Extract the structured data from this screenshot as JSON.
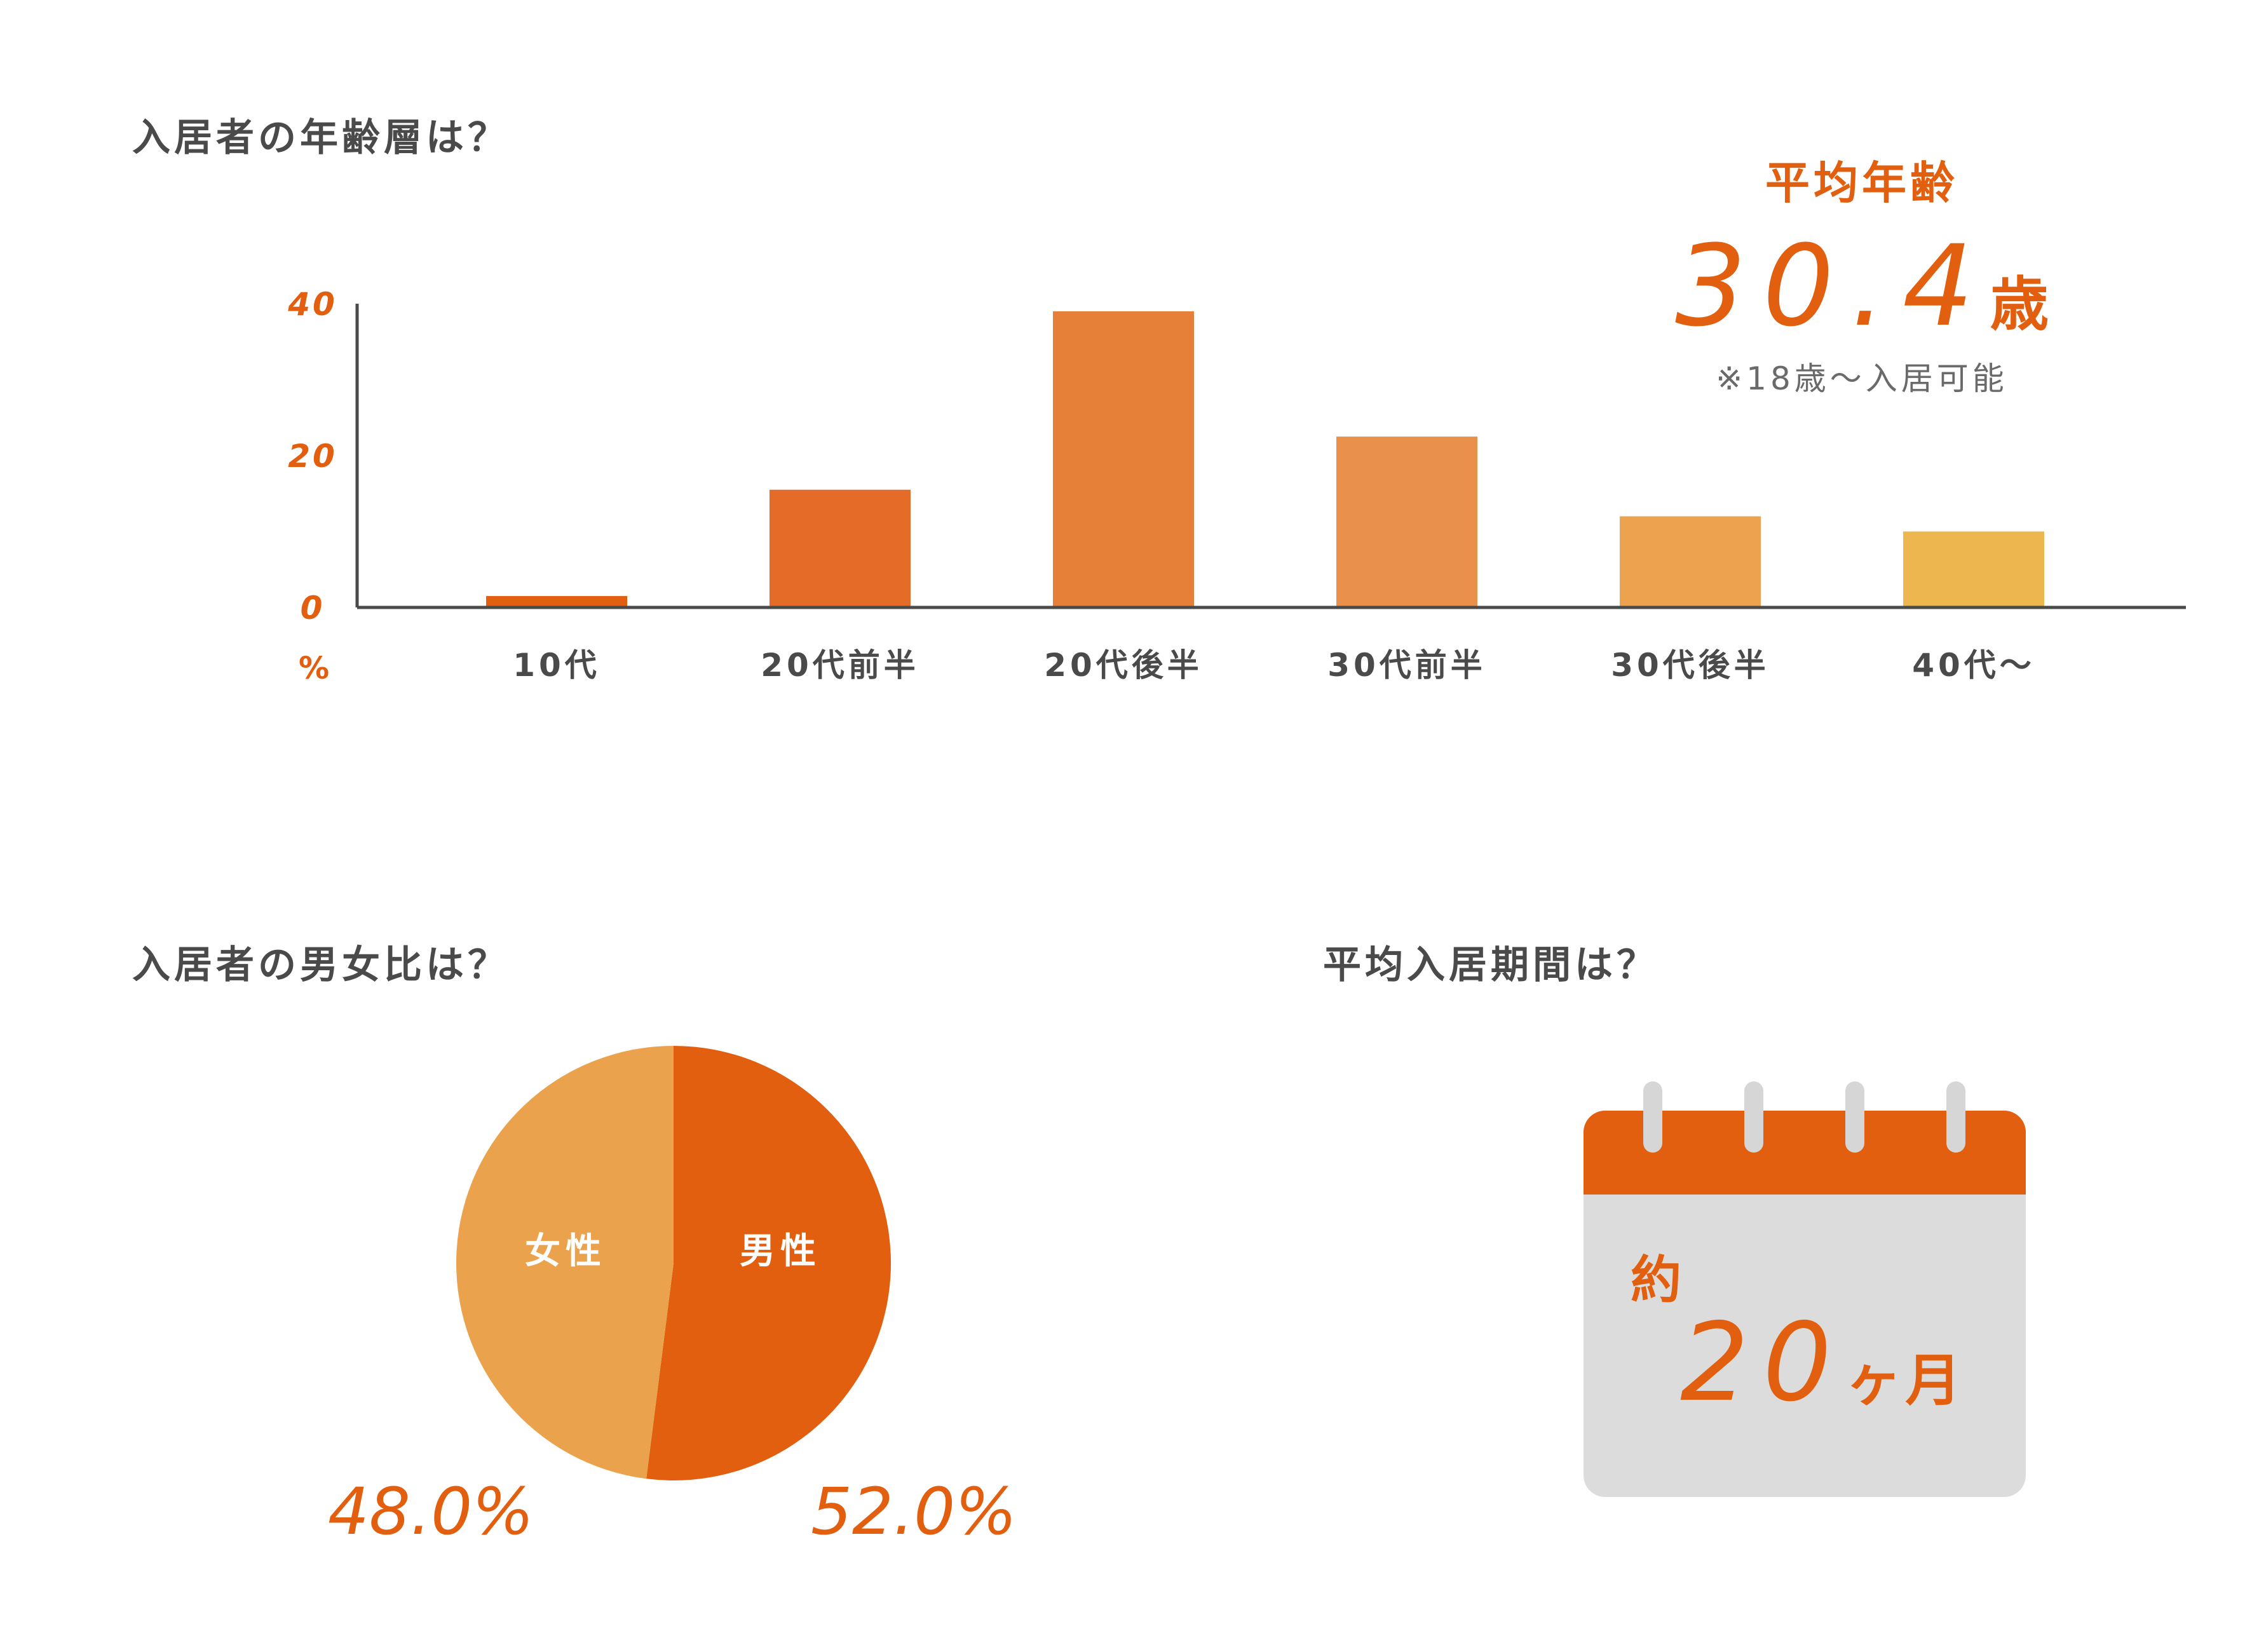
{
  "age_section": {
    "heading": "入居者の年齢層は？",
    "average_label": "平均年齢",
    "average_value": "30.4",
    "average_unit": "歳",
    "note": "※18歳〜入居可能"
  },
  "gender_section": {
    "heading": "入居者の男女比は？",
    "female_label": "女性",
    "male_label": "男性",
    "female_pct": "48.0%",
    "male_pct": "52.0%"
  },
  "stay_section": {
    "heading": "平均入居期間は？",
    "prefix": "約",
    "value": "20",
    "unit": "ヶ月"
  },
  "chart_data": [
    {
      "type": "bar",
      "categories": [
        "10代",
        "20代前半",
        "20代後半",
        "30代前半",
        "30代後半",
        "40代〜"
      ],
      "values": [
        1.5,
        15.5,
        39,
        22.5,
        12,
        10
      ],
      "yticks": [
        "0",
        "20",
        "40"
      ],
      "ylim": [
        0,
        40
      ],
      "unit_label": "%",
      "colors": [
        "#e15f0e",
        "#e46c28",
        "#e67f38",
        "#e9914a",
        "#eca24e",
        "#edb64f"
      ],
      "axis_color": "#4a4a4a",
      "tick_color": "#e15f0e"
    },
    {
      "type": "pie",
      "labels": [
        "男性",
        "女性"
      ],
      "values": [
        52.0,
        48.0
      ],
      "colors": [
        "#e15f0e",
        "#eba24d"
      ]
    }
  ]
}
